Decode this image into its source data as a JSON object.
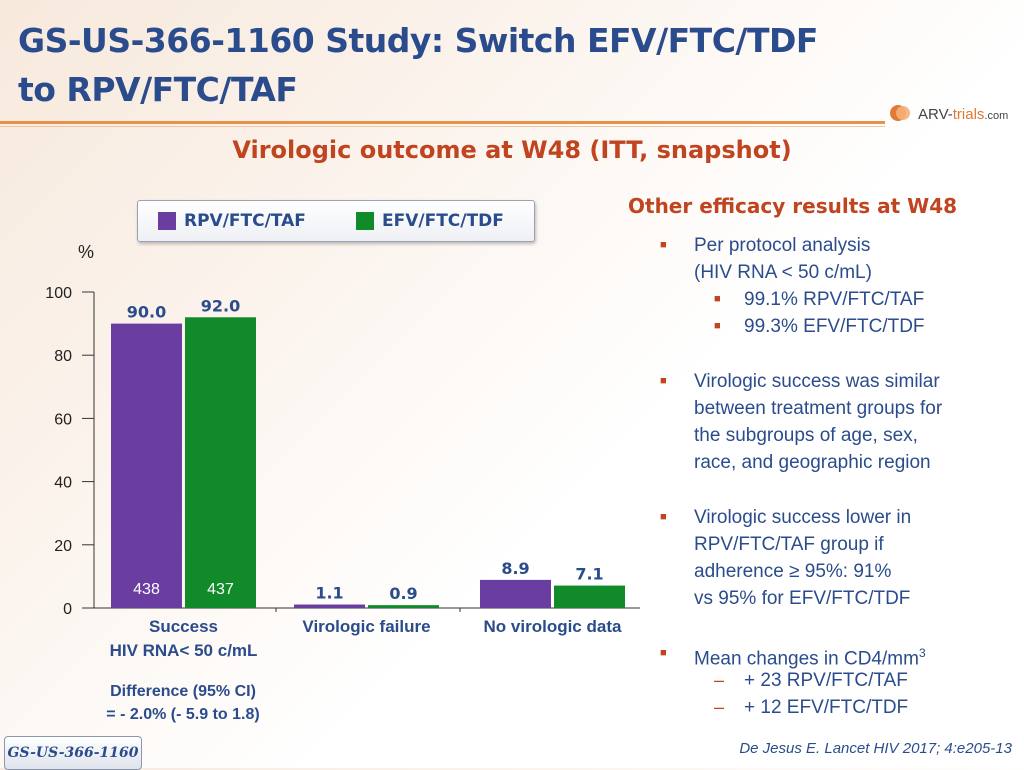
{
  "slide": {
    "title_line1": "GS-US-366-1160 Study: Switch EFV/FTC/TDF",
    "title_line2": "to RPV/FTC/TAF",
    "subtitle": "Virologic outcome at W48 (ITT, snapshot)",
    "logo_text_a": "ARV-",
    "logo_text_b": "trials",
    "logo_text_c": ".com",
    "study_tab": "GS-US-366-1160",
    "citation": "De Jesus E. Lancet HIV 2017; 4:e205-13"
  },
  "colors": {
    "rpv": "#6a3ea1",
    "efv": "#118a2a",
    "title": "#2b4c8c",
    "accent": "#c0441f"
  },
  "chart_data": {
    "type": "bar",
    "ylabel": "%",
    "ylim": [
      0,
      100
    ],
    "yticks": [
      0,
      20,
      40,
      60,
      80,
      100
    ],
    "categories": [
      [
        "Success",
        "HIV RNA< 50 c/mL"
      ],
      [
        "Virologic failure"
      ],
      [
        "No virologic data"
      ]
    ],
    "series": [
      {
        "name": "RPV/FTC/TAF",
        "values": [
          90.0,
          1.1,
          8.9
        ],
        "labels": [
          "90.0",
          "1.1",
          "8.9"
        ],
        "n": [
          "438",
          null,
          null
        ]
      },
      {
        "name": "EFV/FTC/TDF",
        "values": [
          92.0,
          0.9,
          7.1
        ],
        "labels": [
          "92.0",
          "0.9",
          "7.1"
        ],
        "n": [
          "437",
          null,
          null
        ]
      }
    ],
    "grid": false,
    "legend_position": "top"
  },
  "difference": {
    "line1": "Difference (95% CI)",
    "line2": "= - 2.0% (- 5.9 to 1.8)"
  },
  "efficacy": {
    "title": "Other efficacy results at W48",
    "bullet1": "Per protocol analysis",
    "bullet1_line2": "(HIV RNA < 50 c/mL)",
    "sub1": "99.1% RPV/FTC/TAF",
    "sub2": "99.3% EFV/FTC/TDF",
    "bullet2_l1": "Virologic success was similar",
    "bullet2_l2": "between treatment groups for",
    "bullet2_l3": "the subgroups of age, sex,",
    "bullet2_l4": "race, and geographic region",
    "bullet3_l1": "Virologic success lower in",
    "bullet3_l2": "RPV/FTC/TAF group if",
    "bullet3_l3": "adherence ≥ 95%: 91%",
    "bullet3_l4": "vs 95% for EFV/FTC/TDF",
    "bullet4": "Mean changes in CD4/mm",
    "bullet4_sup": "3",
    "sub3": "+ 23 RPV/FTC/TAF",
    "sub4": "+ 12 EFV/FTC/TDF",
    "bullet_marker": "■",
    "dash_marker": "–"
  }
}
